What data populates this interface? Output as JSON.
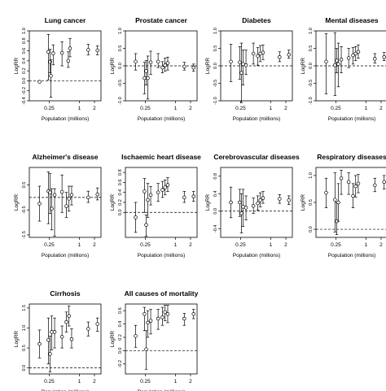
{
  "figure": {
    "xlabel": "Population (millions)",
    "ylabel": "LogRR",
    "xticks": [
      0.25,
      1,
      2
    ],
    "xtick_labels": [
      "0.25",
      "1",
      "2"
    ],
    "xlim": [
      0.1,
      2.7
    ]
  },
  "chart_data": [
    {
      "type": "scatter",
      "title": "Lung cancer",
      "xlabel": "Population (millions)",
      "ylabel": "LogRR",
      "ylim": [
        -0.4,
        1.0
      ],
      "yticks": [
        -0.4,
        -0.2,
        0.0,
        0.2,
        0.4,
        0.6,
        0.8,
        1.0
      ],
      "ytick_labels": [
        "-0.4",
        "-0.2",
        "0.0",
        "0.2",
        "0.4",
        "0.6",
        "0.8",
        "1.0"
      ],
      "reference_line": 0.0,
      "points": [
        {
          "x": 0.16,
          "y": -0.02,
          "lo": -0.02,
          "hi": -0.02
        },
        {
          "x": 0.24,
          "y": 0.58,
          "lo": 0.02,
          "hi": 0.93
        },
        {
          "x": 0.26,
          "y": 0.38,
          "lo": 0.16,
          "hi": 0.63
        },
        {
          "x": 0.27,
          "y": 0.1,
          "lo": -0.33,
          "hi": 0.42
        },
        {
          "x": 0.3,
          "y": 0.55,
          "lo": 0.32,
          "hi": 0.72
        },
        {
          "x": 0.45,
          "y": 0.56,
          "lo": 0.3,
          "hi": 0.78
        },
        {
          "x": 0.6,
          "y": 0.4,
          "lo": 0.27,
          "hi": 0.58
        },
        {
          "x": 0.65,
          "y": 0.65,
          "lo": 0.48,
          "hi": 0.85
        },
        {
          "x": 1.5,
          "y": 0.62,
          "lo": 0.52,
          "hi": 0.73
        },
        {
          "x": 2.3,
          "y": 0.61,
          "lo": 0.52,
          "hi": 0.7
        }
      ]
    },
    {
      "type": "scatter",
      "title": "Prostate cancer",
      "xlabel": "Population (millions)",
      "ylabel": "LogRR",
      "ylim": [
        -1.0,
        1.0
      ],
      "yticks": [
        -1.0,
        -0.5,
        0.0,
        0.5,
        1.0
      ],
      "ytick_labels": [
        "-1.0",
        "-0.5",
        "0.0",
        "0.5",
        "1.0"
      ],
      "reference_line": 0.0,
      "points": [
        {
          "x": 0.16,
          "y": 0.12,
          "lo": -0.12,
          "hi": 0.35
        },
        {
          "x": 0.24,
          "y": -0.35,
          "lo": -0.8,
          "hi": 0.1
        },
        {
          "x": 0.26,
          "y": -0.15,
          "lo": -0.55,
          "hi": 0.15
        },
        {
          "x": 0.28,
          "y": -0.35,
          "lo": -0.95,
          "hi": 0.28
        },
        {
          "x": 0.32,
          "y": 0.1,
          "lo": -0.25,
          "hi": 0.42
        },
        {
          "x": 0.45,
          "y": 0.12,
          "lo": -0.05,
          "hi": 0.35
        },
        {
          "x": 0.55,
          "y": -0.05,
          "lo": -0.2,
          "hi": 0.12
        },
        {
          "x": 0.62,
          "y": 0.02,
          "lo": -0.15,
          "hi": 0.22
        },
        {
          "x": 0.7,
          "y": 0.08,
          "lo": -0.12,
          "hi": 0.25
        },
        {
          "x": 1.5,
          "y": -0.02,
          "lo": -0.12,
          "hi": 0.1
        },
        {
          "x": 2.3,
          "y": -0.05,
          "lo": -0.15,
          "hi": 0.05
        }
      ]
    },
    {
      "type": "scatter",
      "title": "Diabetes",
      "xlabel": "Population (millions)",
      "ylabel": "LogRR",
      "ylim": [
        -1.0,
        1.0
      ],
      "yticks": [
        -1.0,
        -0.5,
        0.0,
        0.5,
        1.0
      ],
      "ytick_labels": [
        "-1.0",
        "-0.5",
        "0.0",
        "0.5",
        "1.0"
      ],
      "reference_line": 0.0,
      "points": [
        {
          "x": 0.16,
          "y": 0.12,
          "lo": -0.45,
          "hi": 0.62
        },
        {
          "x": 0.24,
          "y": 0.1,
          "lo": -0.38,
          "hi": 0.55
        },
        {
          "x": 0.26,
          "y": -0.2,
          "lo": -1.05,
          "hi": 0.65
        },
        {
          "x": 0.28,
          "y": 0.05,
          "lo": -0.55,
          "hi": 0.45
        },
        {
          "x": 0.32,
          "y": 0.02,
          "lo": -0.25,
          "hi": 0.45
        },
        {
          "x": 0.45,
          "y": 0.35,
          "lo": 0.05,
          "hi": 0.65
        },
        {
          "x": 0.55,
          "y": 0.28,
          "lo": 0.02,
          "hi": 0.52
        },
        {
          "x": 0.62,
          "y": 0.35,
          "lo": 0.12,
          "hi": 0.58
        },
        {
          "x": 0.7,
          "y": 0.38,
          "lo": 0.18,
          "hi": 0.6
        },
        {
          "x": 1.5,
          "y": 0.25,
          "lo": 0.12,
          "hi": 0.4
        },
        {
          "x": 2.3,
          "y": 0.32,
          "lo": 0.22,
          "hi": 0.45
        }
      ]
    },
    {
      "type": "scatter",
      "title": "Mental diseases",
      "xlabel": "Population (millions)",
      "ylabel": "LogRR",
      "ylim": [
        -1.0,
        1.0
      ],
      "yticks": [
        -1.0,
        -0.5,
        0.0,
        0.5,
        1.0
      ],
      "ytick_labels": [
        "-1.0",
        "-0.5",
        "0.0",
        "0.5",
        "1.0"
      ],
      "reference_line": 0.0,
      "points": [
        {
          "x": 0.16,
          "y": 0.12,
          "lo": -0.8,
          "hi": 0.92
        },
        {
          "x": 0.24,
          "y": 0.02,
          "lo": -0.85,
          "hi": 0.95
        },
        {
          "x": 0.26,
          "y": 0.15,
          "lo": -0.2,
          "hi": 0.5
        },
        {
          "x": 0.28,
          "y": 0.05,
          "lo": -0.6,
          "hi": 0.65
        },
        {
          "x": 0.32,
          "y": 0.18,
          "lo": -0.2,
          "hi": 0.55
        },
        {
          "x": 0.45,
          "y": 0.22,
          "lo": -0.05,
          "hi": 0.5
        },
        {
          "x": 0.55,
          "y": 0.3,
          "lo": 0.05,
          "hi": 0.52
        },
        {
          "x": 0.62,
          "y": 0.35,
          "lo": 0.15,
          "hi": 0.55
        },
        {
          "x": 0.7,
          "y": 0.4,
          "lo": 0.22,
          "hi": 0.6
        },
        {
          "x": 1.5,
          "y": 0.2,
          "lo": 0.08,
          "hi": 0.35
        },
        {
          "x": 2.3,
          "y": 0.25,
          "lo": 0.15,
          "hi": 0.38
        }
      ]
    },
    {
      "type": "scatter",
      "title": "Alzheimer's disease",
      "xlabel": "Population (millions)",
      "ylabel": "LogRR",
      "ylim": [
        -1.6,
        1.2
      ],
      "yticks": [
        -1.5,
        -0.5,
        0.5
      ],
      "ytick_labels": [
        "-1.5",
        "-0.5",
        "0.5"
      ],
      "reference_line": 0.0,
      "points": [
        {
          "x": 0.16,
          "y": -0.25,
          "lo": -0.95,
          "hi": 0.45
        },
        {
          "x": 0.24,
          "y": 0.25,
          "lo": -1.05,
          "hi": 1.02
        },
        {
          "x": 0.26,
          "y": 0.2,
          "lo": -0.65,
          "hi": 0.95
        },
        {
          "x": 0.28,
          "y": -0.45,
          "lo": -1.3,
          "hi": 0.35
        },
        {
          "x": 0.32,
          "y": 0.1,
          "lo": -1.55,
          "hi": 0.35
        },
        {
          "x": 0.45,
          "y": 0.22,
          "lo": -0.6,
          "hi": 0.9
        },
        {
          "x": 0.55,
          "y": -0.35,
          "lo": -0.8,
          "hi": 0.2
        },
        {
          "x": 0.62,
          "y": -0.05,
          "lo": -0.55,
          "hi": 0.45
        },
        {
          "x": 0.7,
          "y": 0.1,
          "lo": -0.3,
          "hi": 0.45
        },
        {
          "x": 1.5,
          "y": 0.0,
          "lo": -0.2,
          "hi": 0.25
        },
        {
          "x": 2.3,
          "y": 0.12,
          "lo": -0.1,
          "hi": 0.38
        }
      ]
    },
    {
      "type": "scatter",
      "title": "Ischaemic heart disease",
      "xlabel": "Population (millions)",
      "ylabel": "LogRR",
      "ylim": [
        -0.5,
        0.9
      ],
      "yticks": [
        0.0,
        0.2,
        0.4,
        0.6,
        0.8
      ],
      "ytick_labels": [
        "0.0",
        "0.2",
        "0.4",
        "0.6",
        "0.8"
      ],
      "reference_line": 0.0,
      "points": [
        {
          "x": 0.16,
          "y": -0.1,
          "lo": -0.4,
          "hi": 0.2
        },
        {
          "x": 0.24,
          "y": 0.42,
          "lo": 0.0,
          "hi": 0.68
        },
        {
          "x": 0.26,
          "y": -0.25,
          "lo": -0.48,
          "hi": -0.05
        },
        {
          "x": 0.28,
          "y": 0.25,
          "lo": -0.1,
          "hi": 0.58
        },
        {
          "x": 0.32,
          "y": 0.35,
          "lo": 0.15,
          "hi": 0.52
        },
        {
          "x": 0.45,
          "y": 0.4,
          "lo": 0.22,
          "hi": 0.58
        },
        {
          "x": 0.55,
          "y": 0.45,
          "lo": 0.3,
          "hi": 0.62
        },
        {
          "x": 0.62,
          "y": 0.5,
          "lo": 0.35,
          "hi": 0.65
        },
        {
          "x": 0.7,
          "y": 0.55,
          "lo": 0.42,
          "hi": 0.7
        },
        {
          "x": 1.5,
          "y": 0.3,
          "lo": 0.2,
          "hi": 0.42
        },
        {
          "x": 2.3,
          "y": 0.32,
          "lo": 0.22,
          "hi": 0.42
        }
      ]
    },
    {
      "type": "scatter",
      "title": "Cerebrovascular diseases",
      "xlabel": "Population (millions)",
      "ylabel": "LogRR",
      "ylim": [
        -0.6,
        1.0
      ],
      "yticks": [
        -0.4,
        0.0,
        0.4,
        0.8
      ],
      "ytick_labels": [
        "-0.4",
        "0.0",
        "0.4",
        "0.8"
      ],
      "reference_line": 0.0,
      "points": [
        {
          "x": 0.16,
          "y": 0.2,
          "lo": -0.15,
          "hi": 0.55
        },
        {
          "x": 0.24,
          "y": 0.2,
          "lo": -0.12,
          "hi": 0.5
        },
        {
          "x": 0.26,
          "y": -0.05,
          "lo": -0.5,
          "hi": 0.4
        },
        {
          "x": 0.28,
          "y": 0.1,
          "lo": -0.35,
          "hi": 0.5
        },
        {
          "x": 0.32,
          "y": 0.08,
          "lo": -0.2,
          "hi": 0.35
        },
        {
          "x": 0.45,
          "y": 0.12,
          "lo": -0.05,
          "hi": 0.3
        },
        {
          "x": 0.55,
          "y": 0.18,
          "lo": 0.02,
          "hi": 0.35
        },
        {
          "x": 0.62,
          "y": 0.25,
          "lo": 0.1,
          "hi": 0.42
        },
        {
          "x": 0.7,
          "y": 0.3,
          "lo": 0.18,
          "hi": 0.45
        },
        {
          "x": 1.5,
          "y": 0.28,
          "lo": 0.18,
          "hi": 0.38
        },
        {
          "x": 2.3,
          "y": 0.25,
          "lo": 0.15,
          "hi": 0.35
        }
      ]
    },
    {
      "type": "scatter",
      "title": "Respiratory diseases",
      "xlabel": "Population (millions)",
      "ylabel": "LogRR",
      "ylim": [
        -0.15,
        1.15
      ],
      "yticks": [
        0.0,
        0.5,
        1.0
      ],
      "ytick_labels": [
        "0.0",
        "0.5",
        "1.0"
      ],
      "reference_line": 0.0,
      "points": [
        {
          "x": 0.16,
          "y": 0.68,
          "lo": 0.4,
          "hi": 0.95
        },
        {
          "x": 0.24,
          "y": 0.55,
          "lo": -0.05,
          "hi": 1.05
        },
        {
          "x": 0.26,
          "y": 0.15,
          "lo": -0.1,
          "hi": 0.5
        },
        {
          "x": 0.28,
          "y": 0.5,
          "lo": 0.15,
          "hi": 0.85
        },
        {
          "x": 0.32,
          "y": 0.95,
          "lo": 0.65,
          "hi": 1.1
        },
        {
          "x": 0.45,
          "y": 0.88,
          "lo": 0.65,
          "hi": 1.05
        },
        {
          "x": 0.55,
          "y": 0.62,
          "lo": 0.4,
          "hi": 0.85
        },
        {
          "x": 0.62,
          "y": 0.8,
          "lo": 0.6,
          "hi": 1.0
        },
        {
          "x": 0.7,
          "y": 0.85,
          "lo": 0.68,
          "hi": 1.02
        },
        {
          "x": 1.5,
          "y": 0.82,
          "lo": 0.7,
          "hi": 0.95
        },
        {
          "x": 2.3,
          "y": 0.88,
          "lo": 0.75,
          "hi": 1.0
        }
      ]
    },
    {
      "type": "scatter",
      "title": "Cirrhosis",
      "xlabel": "Population (millions)",
      "ylabel": "LogRR",
      "ylim": [
        -0.15,
        1.6
      ],
      "yticks": [
        0.0,
        0.5,
        1.0,
        1.5
      ],
      "ytick_labels": [
        "0.0",
        "0.5",
        "1.0",
        "1.5"
      ],
      "reference_line": 0.0,
      "points": [
        {
          "x": 0.16,
          "y": 0.6,
          "lo": 0.25,
          "hi": 0.95
        },
        {
          "x": 0.24,
          "y": 0.7,
          "lo": 0.1,
          "hi": 1.25
        },
        {
          "x": 0.26,
          "y": 0.35,
          "lo": -0.1,
          "hi": 0.8
        },
        {
          "x": 0.28,
          "y": 0.9,
          "lo": 0.45,
          "hi": 1.3
        },
        {
          "x": 0.32,
          "y": 0.9,
          "lo": 0.5,
          "hi": 1.25
        },
        {
          "x": 0.45,
          "y": 0.78,
          "lo": 0.5,
          "hi": 1.05
        },
        {
          "x": 0.55,
          "y": 1.15,
          "lo": 0.9,
          "hi": 1.4
        },
        {
          "x": 0.62,
          "y": 1.3,
          "lo": 1.05,
          "hi": 1.55
        },
        {
          "x": 0.7,
          "y": 0.72,
          "lo": 0.5,
          "hi": 0.98
        },
        {
          "x": 1.5,
          "y": 0.98,
          "lo": 0.8,
          "hi": 1.15
        },
        {
          "x": 2.3,
          "y": 1.1,
          "lo": 0.92,
          "hi": 1.25
        }
      ]
    },
    {
      "type": "scatter",
      "title": "All causes of mortality",
      "xlabel": "Population (millions)",
      "ylabel": "LogRR",
      "ylim": [
        -0.35,
        0.7
      ],
      "yticks": [
        -0.2,
        0.0,
        0.2,
        0.4,
        0.6
      ],
      "ytick_labels": [
        "-0.2",
        "0.0",
        "0.2",
        "0.4",
        "0.6"
      ],
      "reference_line": 0.0,
      "points": [
        {
          "x": 0.16,
          "y": 0.22,
          "lo": 0.05,
          "hi": 0.38
        },
        {
          "x": 0.24,
          "y": 0.55,
          "lo": 0.3,
          "hi": 0.65
        },
        {
          "x": 0.26,
          "y": 0.02,
          "lo": -0.28,
          "hi": 0.3
        },
        {
          "x": 0.28,
          "y": 0.42,
          "lo": 0.2,
          "hi": 0.6
        },
        {
          "x": 0.32,
          "y": 0.45,
          "lo": 0.25,
          "hi": 0.62
        },
        {
          "x": 0.45,
          "y": 0.48,
          "lo": 0.32,
          "hi": 0.62
        },
        {
          "x": 0.55,
          "y": 0.5,
          "lo": 0.38,
          "hi": 0.65
        },
        {
          "x": 0.62,
          "y": 0.58,
          "lo": 0.45,
          "hi": 0.68
        },
        {
          "x": 0.7,
          "y": 0.55,
          "lo": 0.42,
          "hi": 0.68
        },
        {
          "x": 1.5,
          "y": 0.48,
          "lo": 0.38,
          "hi": 0.56
        },
        {
          "x": 2.3,
          "y": 0.55,
          "lo": 0.48,
          "hi": 0.62
        }
      ]
    }
  ]
}
